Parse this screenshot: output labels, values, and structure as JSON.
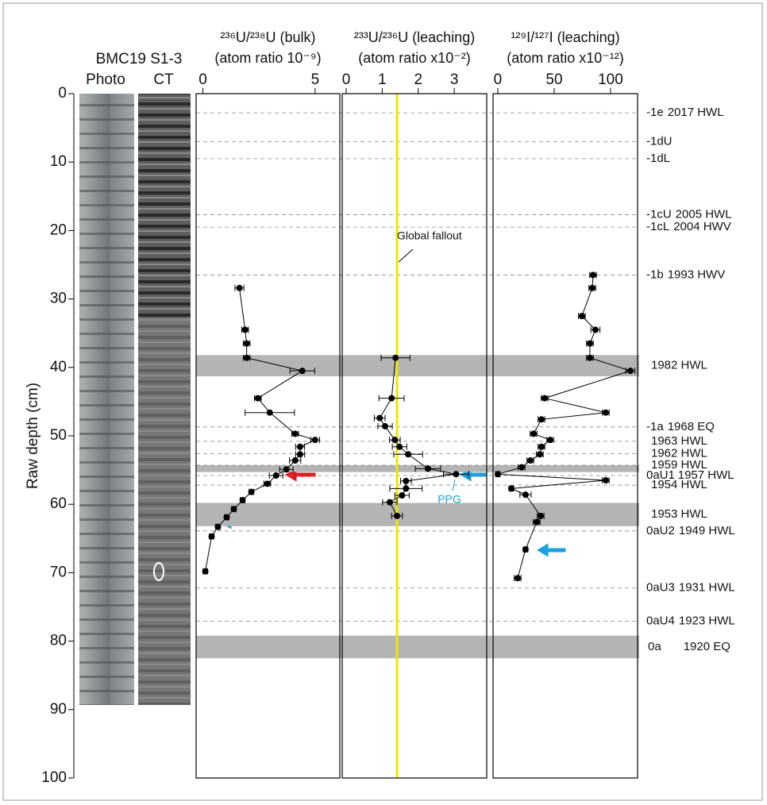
{
  "figure": {
    "core_label": "BMC19 S1-3",
    "photo_label": "Photo",
    "ct_label": "CT",
    "y_label": "Raw depth (cm)",
    "ylim": [
      0,
      100
    ],
    "yticks": [
      0,
      10,
      20,
      30,
      40,
      50,
      60,
      70,
      80,
      90,
      100
    ],
    "band_color": "#b4b4b4",
    "bands": [
      {
        "from": 38.2,
        "to": 41.3,
        "event": "1982 HWL"
      },
      {
        "from": 54.3,
        "to": 55.3
      },
      {
        "from": 59.8,
        "to": 63.2,
        "event": "1953 HWL"
      },
      {
        "from": 79.2,
        "to": 82.5,
        "unit": "0a",
        "event": "1920 EQ"
      }
    ],
    "horizons": [
      {
        "unit": "-1e",
        "event": "2017 HWL",
        "depth": 2.8
      },
      {
        "unit": "-1dU",
        "depth": 7.0
      },
      {
        "unit": "-1dL",
        "depth": 9.5
      },
      {
        "unit": "-1cU",
        "event": "2005 HWL",
        "depth": 17.7
      },
      {
        "unit": "-1cL",
        "event": "2004 HWV",
        "depth": 19.5
      },
      {
        "unit": "-1b",
        "event": "1993 HWV",
        "depth": 26.5
      },
      {
        "unit": "-1a",
        "event": "1968 EQ",
        "depth": 48.7
      },
      {
        "event": "1963 HWL",
        "depth": 50.8
      },
      {
        "event": "1962 HWL",
        "depth": 52.6
      },
      {
        "event": "1959 HWL",
        "depth": 54.3
      },
      {
        "unit": "0aU1",
        "event": "1957 HWL",
        "depth": 55.8
      },
      {
        "event": "1954 HWL",
        "depth": 57.2
      },
      {
        "unit": "0aU2",
        "event": "1949 HWL",
        "depth": 63.9
      },
      {
        "unit": "0aU3",
        "event": "1931 HWL",
        "depth": 72.2
      },
      {
        "unit": "0aU4",
        "event": "1923 HWL",
        "depth": 77.1
      }
    ]
  },
  "chart_data": [
    {
      "type": "line",
      "title": "²³⁶U/²³⁸U (bulk)",
      "subtitle": "(atom ratio 10⁻⁹)",
      "color": "#000000",
      "xlim": [
        -0.3,
        6.1
      ],
      "xticks": [
        0,
        5
      ],
      "depth": [
        28.4,
        34.5,
        36.5,
        38.6,
        40.5,
        44.5,
        46.6,
        49.7,
        50.6,
        51.6,
        52.7,
        53.6,
        54.9,
        55.8,
        57.0,
        58.2,
        59.4,
        60.7,
        61.9,
        63.3,
        64.7,
        69.8
      ],
      "values": [
        1.63,
        1.88,
        1.95,
        1.95,
        4.43,
        2.45,
        2.98,
        4.11,
        5.0,
        4.33,
        4.33,
        4.11,
        3.72,
        3.26,
        2.87,
        2.16,
        1.77,
        1.38,
        1.06,
        0.67,
        0.39,
        0.11
      ],
      "errors": [
        0.2,
        0.15,
        0.15,
        0.15,
        0.55,
        0.15,
        1.1,
        0.15,
        0.2,
        0.2,
        0.2,
        0.25,
        0.3,
        0.3,
        0.15,
        0.1,
        0.1,
        0.1,
        0.1,
        0.1,
        0.1,
        0.1
      ]
    },
    {
      "type": "line",
      "title": "²³³U/²³⁶U (leaching)",
      "subtitle": "(atom ratio x10⁻²)",
      "color": "#000000",
      "xlim": [
        -0.11,
        3.9
      ],
      "xticks": [
        0,
        1,
        2,
        3
      ],
      "reference_line": {
        "value": 1.41,
        "color": "#f2e600",
        "label": "Global fallout"
      },
      "annotations": [
        {
          "text": "PPG",
          "color": "#1ba1dd"
        }
      ],
      "depth": [
        38.6,
        44.5,
        47.4,
        48.6,
        50.6,
        51.6,
        52.7,
        54.8,
        55.6,
        56.6,
        57.7,
        58.7,
        59.7,
        61.7
      ],
      "values": [
        1.37,
        1.26,
        0.93,
        1.08,
        1.35,
        1.48,
        1.72,
        2.27,
        3.05,
        1.66,
        1.66,
        1.55,
        1.21,
        1.41
      ],
      "errors": [
        0.4,
        0.35,
        0.15,
        0.2,
        0.15,
        0.2,
        0.4,
        0.35,
        0.35,
        0.15,
        0.45,
        0.2,
        0.2,
        0.15
      ]
    },
    {
      "type": "line",
      "title": "¹²⁹I/¹²⁷I (leaching)",
      "subtitle": "(atom ratio x10⁻¹²)",
      "color": "#000000",
      "xlim": [
        -4.2,
        124
      ],
      "xticks": [
        0,
        50,
        100
      ],
      "depth": [
        26.5,
        28.4,
        32.5,
        34.5,
        36.5,
        38.6,
        40.5,
        44.5,
        46.6,
        47.6,
        49.7,
        50.6,
        51.6,
        52.7,
        53.6,
        54.6,
        55.6,
        56.5,
        57.7,
        58.6,
        61.7,
        62.6,
        66.6,
        70.8
      ],
      "values": [
        84.5,
        83.8,
        74.6,
        86.6,
        81.7,
        81.7,
        117.6,
        41.5,
        95.8,
        38.7,
        31.7,
        46.5,
        38.7,
        37.3,
        28.9,
        21.1,
        0,
        95.8,
        12.0,
        24.6,
        38.0,
        34.5,
        24.6,
        17.6
      ],
      "errors": [
        3,
        3,
        3,
        4,
        3,
        3,
        4,
        3,
        3,
        3,
        3,
        3,
        3,
        3,
        3,
        3,
        2,
        3,
        2,
        5,
        3,
        3,
        2,
        3
      ]
    }
  ]
}
